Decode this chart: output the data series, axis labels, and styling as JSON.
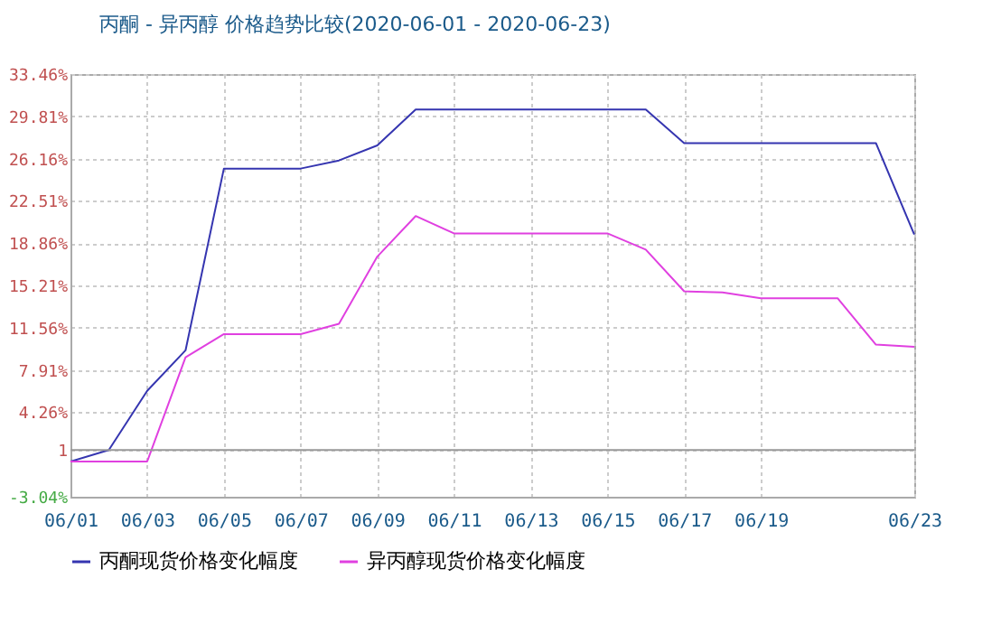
{
  "chart_data": {
    "type": "line",
    "title": "丙酮 - 异丙醇 价格趋势比较(2020-06-01 - 2020-06-23)",
    "categories": [
      "06/01",
      null,
      "06/03",
      null,
      "06/05",
      null,
      "06/07",
      null,
      "06/09",
      null,
      "06/11",
      null,
      "06/13",
      null,
      "06/15",
      null,
      "06/17",
      null,
      "06/19",
      null,
      null,
      null,
      "06/23"
    ],
    "series": [
      {
        "name": "丙酮现货价格变化幅度",
        "color": "#3535b0",
        "values": [
          0,
          1,
          6.1,
          9.6,
          25.3,
          25.3,
          25.3,
          26.0,
          27.3,
          30.4,
          30.4,
          30.4,
          30.4,
          30.4,
          30.4,
          30.4,
          27.5,
          27.5,
          27.5,
          27.5,
          27.5,
          27.5,
          19.6
        ]
      },
      {
        "name": "异丙醇现货价格变化幅度",
        "color": "#e040e0",
        "values": [
          0,
          0,
          0,
          9.0,
          11.0,
          11.0,
          11.0,
          11.9,
          17.7,
          21.2,
          19.7,
          19.7,
          19.7,
          19.7,
          19.7,
          18.3,
          14.7,
          14.6,
          14.1,
          14.1,
          14.1,
          10.1,
          9.9
        ]
      }
    ],
    "ylim": [
      -3.04,
      33.46
    ],
    "yticks": [
      {
        "value": -3.04,
        "label": "-3.04%"
      },
      1,
      {
        "value": 4.26,
        "label": "4.26%"
      },
      {
        "value": 7.91,
        "label": "7.91%"
      },
      {
        "value": 11.56,
        "label": "11.56%"
      },
      {
        "value": 15.21,
        "label": "15.21%"
      },
      {
        "value": 18.86,
        "label": "18.86%"
      },
      {
        "value": 22.51,
        "label": "22.51%"
      },
      {
        "value": 26.16,
        "label": "26.16%"
      },
      {
        "value": 29.81,
        "label": "29.81%"
      },
      {
        "value": 33.46,
        "label": "33.46%"
      }
    ],
    "ref_lines": [
      {
        "axis": "y",
        "value": 1,
        "color": "#999999"
      }
    ],
    "grid": true,
    "legend": "bottom",
    "marker": "none",
    "line_style": "solid"
  }
}
